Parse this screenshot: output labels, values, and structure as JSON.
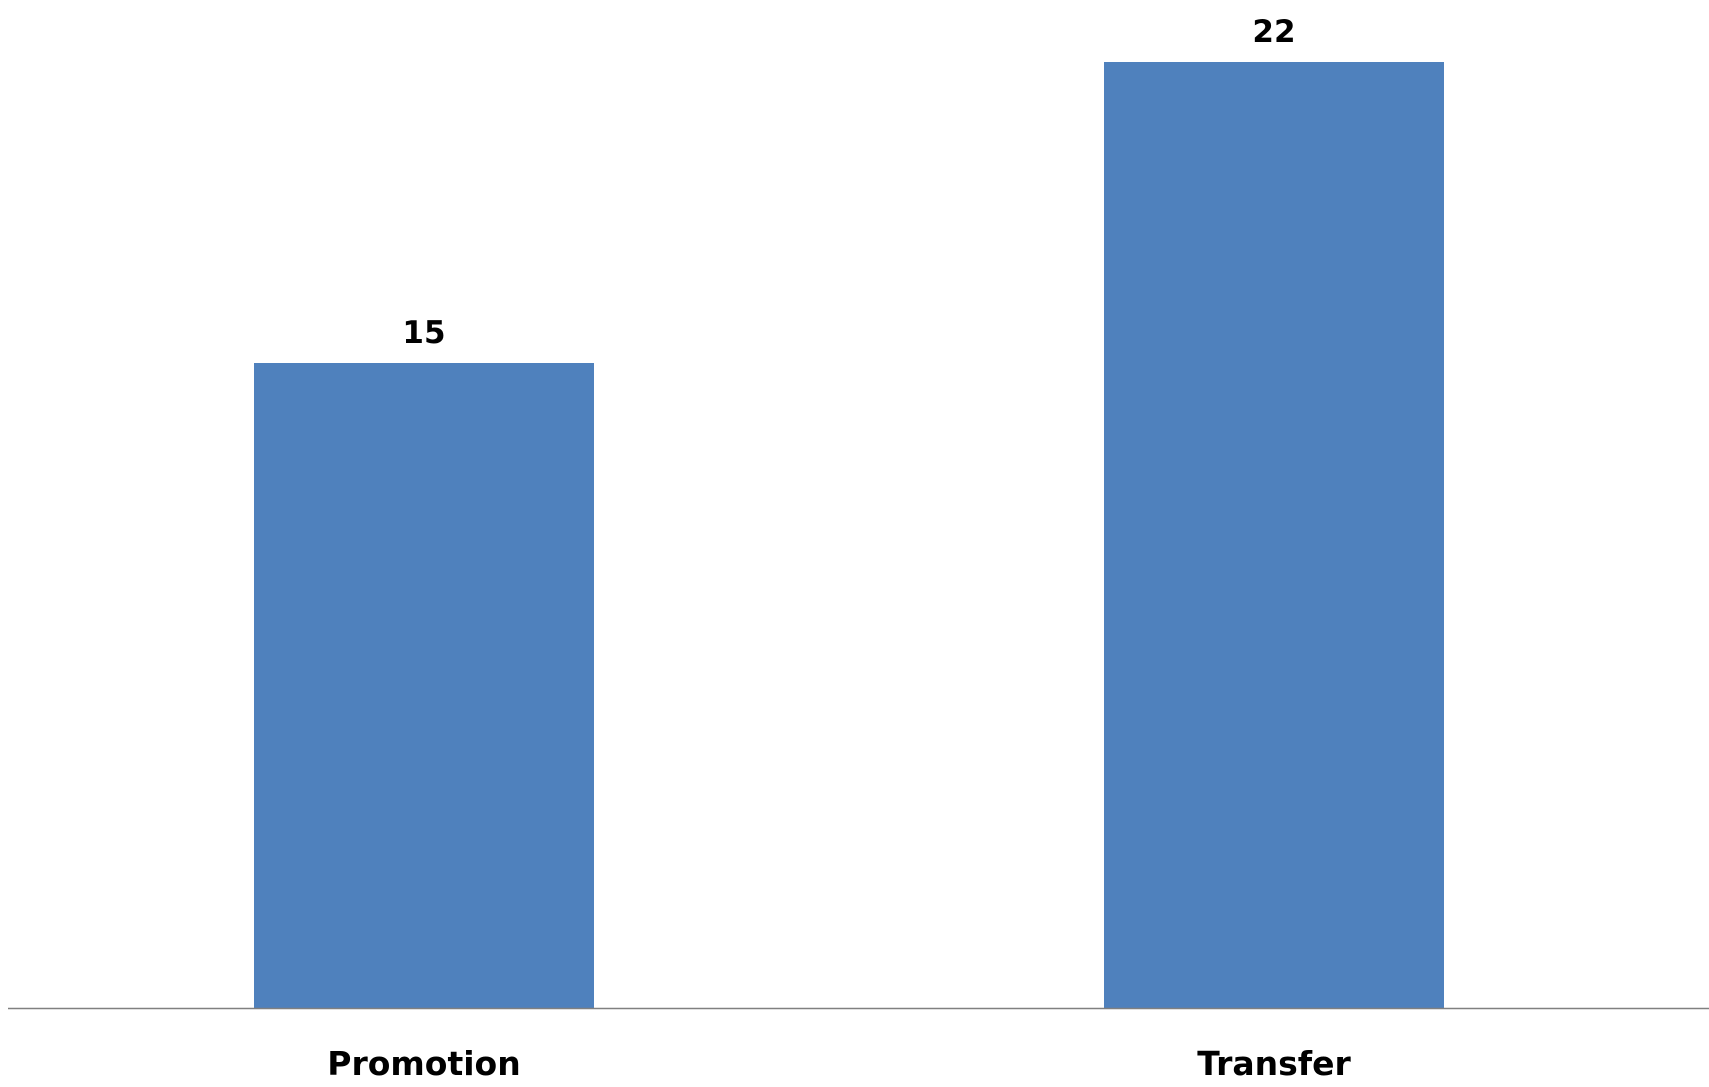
{
  "chart_data": {
    "type": "bar",
    "categories": [
      "Promotion",
      "Transfer"
    ],
    "values": [
      15,
      22
    ],
    "data_labels": [
      "15",
      "22"
    ],
    "title": "",
    "xlabel": "",
    "ylabel": "",
    "ylim": [
      0,
      22
    ],
    "grid": false,
    "legend": "none",
    "colors": {
      "bar": "#4F81BD",
      "axis": "#808080",
      "text": "#000000"
    }
  }
}
